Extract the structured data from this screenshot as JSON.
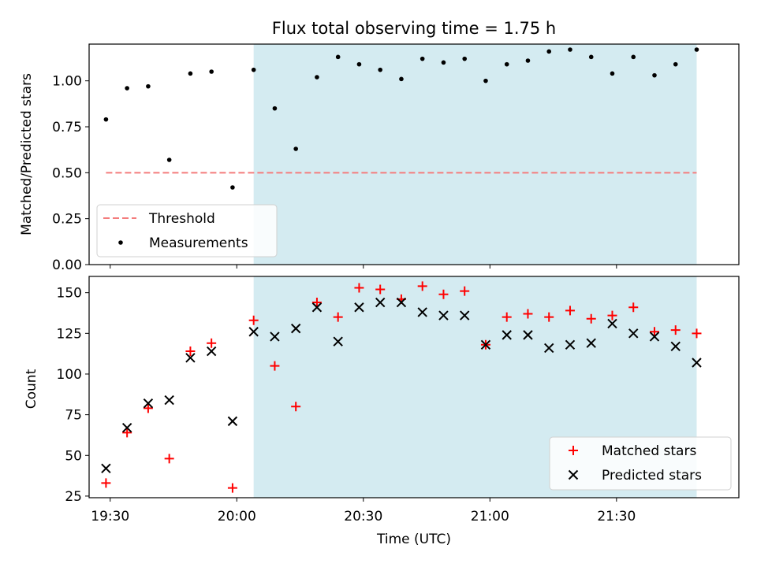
{
  "chart_data": [
    {
      "type": "scatter",
      "title": "Flux total observing time = 1.75 h",
      "xlabel": "",
      "ylabel": "Matched/Predicted stars",
      "xlim": [
        "19:25",
        "21:59"
      ],
      "ylim": [
        0,
        1.2
      ],
      "yticks": [
        0.0,
        0.25,
        0.5,
        0.75,
        1.0
      ],
      "ytick_labels": [
        "0.00",
        "0.25",
        "0.50",
        "0.75",
        "1.00"
      ],
      "highlight_span": {
        "x_start": "20:04",
        "x_end": "21:49",
        "color": "#d4ebf1"
      },
      "legend": {
        "placement": "lower-left",
        "entries": [
          "Threshold",
          "Measurements"
        ]
      },
      "series": [
        {
          "name": "Threshold",
          "kind": "line",
          "style": "dashed",
          "color": "#f47c7c",
          "points": [
            [
              "19:29",
              0.5
            ],
            [
              "21:49",
              0.5
            ]
          ]
        },
        {
          "name": "Measurements",
          "kind": "scatter",
          "marker": "dot",
          "color": "#000000",
          "points": [
            [
              "19:29",
              0.79
            ],
            [
              "19:34",
              0.96
            ],
            [
              "19:39",
              0.97
            ],
            [
              "19:44",
              0.57
            ],
            [
              "19:49",
              1.04
            ],
            [
              "19:54",
              1.05
            ],
            [
              "19:59",
              0.42
            ],
            [
              "20:04",
              1.06
            ],
            [
              "20:09",
              0.85
            ],
            [
              "20:14",
              0.63
            ],
            [
              "20:19",
              1.02
            ],
            [
              "20:24",
              1.13
            ],
            [
              "20:29",
              1.09
            ],
            [
              "20:34",
              1.06
            ],
            [
              "20:39",
              1.01
            ],
            [
              "20:44",
              1.12
            ],
            [
              "20:49",
              1.1
            ],
            [
              "20:54",
              1.12
            ],
            [
              "20:59",
              1.0
            ],
            [
              "21:04",
              1.09
            ],
            [
              "21:09",
              1.11
            ],
            [
              "21:14",
              1.16
            ],
            [
              "21:19",
              1.17
            ],
            [
              "21:24",
              1.13
            ],
            [
              "21:29",
              1.04
            ],
            [
              "21:34",
              1.13
            ],
            [
              "21:39",
              1.03
            ],
            [
              "21:44",
              1.09
            ],
            [
              "21:49",
              1.17
            ]
          ]
        }
      ]
    },
    {
      "type": "scatter",
      "title": "",
      "xlabel": "Time (UTC)",
      "ylabel": "Count",
      "xlim": [
        "19:25",
        "21:59"
      ],
      "ylim": [
        24,
        160
      ],
      "xticks": [
        "19:30",
        "20:00",
        "20:30",
        "21:00",
        "21:30"
      ],
      "yticks": [
        25,
        50,
        75,
        100,
        125,
        150
      ],
      "highlight_span": {
        "x_start": "20:04",
        "x_end": "21:49",
        "color": "#d4ebf1"
      },
      "legend": {
        "placement": "lower-right",
        "entries": [
          "Matched stars",
          "Predicted stars"
        ]
      },
      "series": [
        {
          "name": "Matched stars",
          "kind": "scatter",
          "marker": "plus",
          "color": "#ff0000",
          "points": [
            [
              "19:29",
              33
            ],
            [
              "19:34",
              64
            ],
            [
              "19:39",
              79
            ],
            [
              "19:44",
              48
            ],
            [
              "19:49",
              114
            ],
            [
              "19:54",
              119
            ],
            [
              "19:59",
              30
            ],
            [
              "20:04",
              133
            ],
            [
              "20:09",
              105
            ],
            [
              "20:14",
              80
            ],
            [
              "20:19",
              144
            ],
            [
              "20:24",
              135
            ],
            [
              "20:29",
              153
            ],
            [
              "20:34",
              152
            ],
            [
              "20:39",
              146
            ],
            [
              "20:44",
              154
            ],
            [
              "20:49",
              149
            ],
            [
              "20:54",
              151
            ],
            [
              "20:59",
              118
            ],
            [
              "21:04",
              135
            ],
            [
              "21:09",
              137
            ],
            [
              "21:14",
              135
            ],
            [
              "21:19",
              139
            ],
            [
              "21:24",
              134
            ],
            [
              "21:29",
              136
            ],
            [
              "21:34",
              141
            ],
            [
              "21:39",
              126
            ],
            [
              "21:44",
              127
            ],
            [
              "21:49",
              125
            ]
          ]
        },
        {
          "name": "Predicted stars",
          "kind": "scatter",
          "marker": "x",
          "color": "#000000",
          "points": [
            [
              "19:29",
              42
            ],
            [
              "19:34",
              67
            ],
            [
              "19:39",
              82
            ],
            [
              "19:44",
              84
            ],
            [
              "19:49",
              110
            ],
            [
              "19:54",
              114
            ],
            [
              "19:59",
              71
            ],
            [
              "20:04",
              126
            ],
            [
              "20:09",
              123
            ],
            [
              "20:14",
              128
            ],
            [
              "20:19",
              141
            ],
            [
              "20:24",
              120
            ],
            [
              "20:29",
              141
            ],
            [
              "20:34",
              144
            ],
            [
              "20:39",
              144
            ],
            [
              "20:44",
              138
            ],
            [
              "20:49",
              136
            ],
            [
              "20:54",
              136
            ],
            [
              "20:59",
              118
            ],
            [
              "21:04",
              124
            ],
            [
              "21:09",
              124
            ],
            [
              "21:14",
              116
            ],
            [
              "21:19",
              118
            ],
            [
              "21:24",
              119
            ],
            [
              "21:29",
              131
            ],
            [
              "21:34",
              125
            ],
            [
              "21:39",
              123
            ],
            [
              "21:44",
              117
            ],
            [
              "21:49",
              107
            ]
          ]
        }
      ]
    }
  ]
}
